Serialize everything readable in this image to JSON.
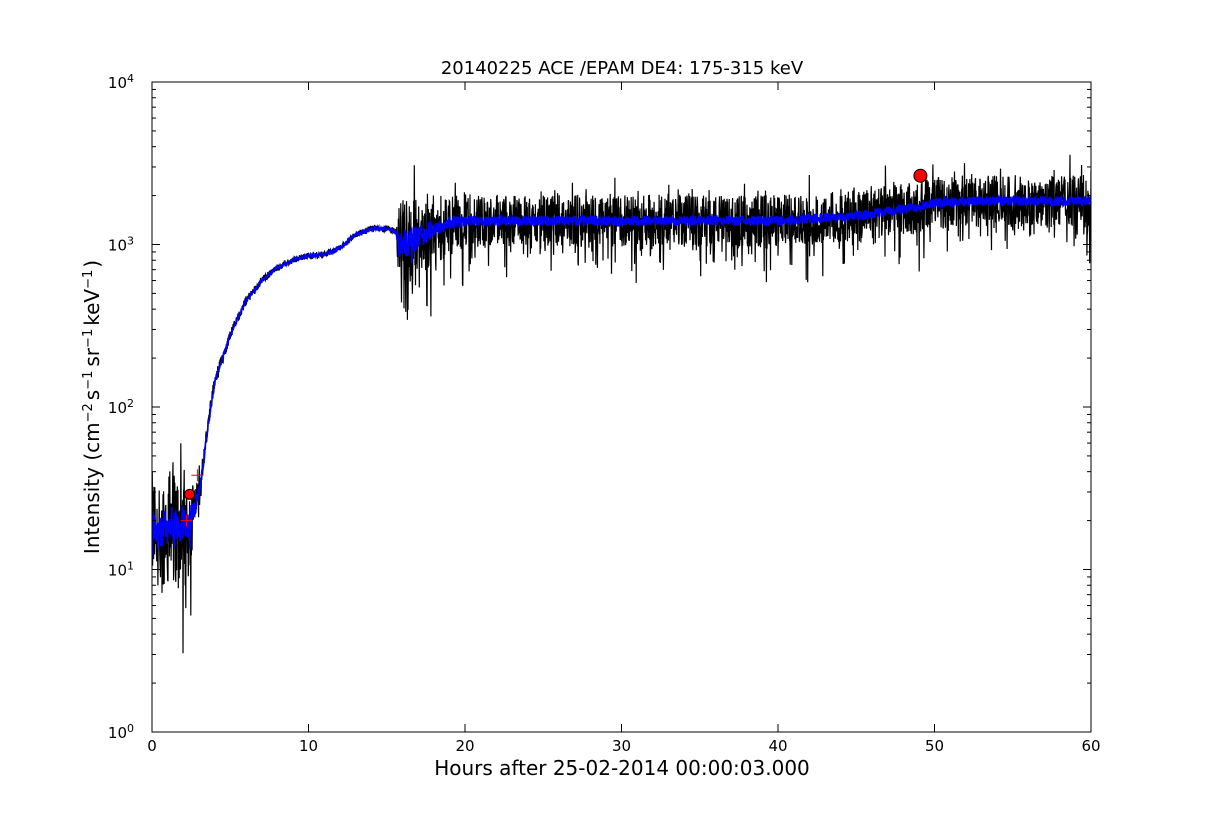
{
  "chart_data": {
    "type": "line",
    "title": "20140225 ACE /EPAM DE4: 175-315 keV",
    "xlabel": "Hours after 25-02-2014 00:00:03.000",
    "ylabel": {
      "prefix": "Intensity (cm",
      "sup1": "−2",
      "mid1": "s",
      "sup2": "−1",
      "mid2": "sr",
      "sup3": "−1",
      "mid3": "keV",
      "sup4": "−1",
      "suffix": ")"
    },
    "xlim": [
      0,
      60
    ],
    "ylim": [
      1,
      10000
    ],
    "yscale": "log",
    "grid": false,
    "legend": "none",
    "x_ticks": [
      0,
      10,
      20,
      30,
      40,
      50,
      60
    ],
    "x_tick_labels": [
      "0",
      "10",
      "20",
      "30",
      "40",
      "50",
      "60"
    ],
    "y_ticks": [
      1,
      10,
      100,
      1000,
      10000
    ],
    "y_tick_labels": [
      {
        "base": "10",
        "exp": "0"
      },
      {
        "base": "10",
        "exp": "1"
      },
      {
        "base": "10",
        "exp": "2"
      },
      {
        "base": "10",
        "exp": "3"
      },
      {
        "base": "10",
        "exp": "4"
      }
    ],
    "colors": {
      "raw": "#000000",
      "smoothed": "#0000ff",
      "marker": "#ff0000"
    },
    "series": [
      {
        "role": "raw",
        "color": "#000000",
        "x": [
          0,
          0.5,
          1,
          1.5,
          2,
          2.4,
          2.8,
          3.2,
          3.6,
          4,
          4.5,
          5,
          6,
          7,
          8,
          9,
          10,
          11,
          12,
          13,
          14,
          15,
          15.6,
          15.8,
          16,
          17,
          18,
          19,
          20,
          22,
          25,
          30,
          35,
          40,
          45,
          48,
          50,
          52,
          55,
          58,
          60
        ],
        "y": [
          18,
          17,
          19,
          18,
          19,
          20,
          25,
          40,
          80,
          140,
          200,
          280,
          450,
          600,
          720,
          800,
          850,
          870,
          950,
          1150,
          1250,
          1250,
          1200,
          900,
          1000,
          1100,
          1250,
          1350,
          1400,
          1400,
          1400,
          1400,
          1400,
          1400,
          1500,
          1650,
          1800,
          1850,
          1850,
          1850,
          1850
        ],
        "noise": [
          0.35,
          0.35,
          0.35,
          0.35,
          0.35,
          0.3,
          0.12,
          0.08,
          0.06,
          0.05,
          0.04,
          0.03,
          0.03,
          0.025,
          0.02,
          0.02,
          0.02,
          0.02,
          0.02,
          0.02,
          0.02,
          0.02,
          0.02,
          0.3,
          0.28,
          0.25,
          0.22,
          0.2,
          0.18,
          0.16,
          0.16,
          0.16,
          0.16,
          0.16,
          0.16,
          0.16,
          0.16,
          0.16,
          0.16,
          0.16,
          0.16
        ]
      },
      {
        "role": "smoothed",
        "color": "#0000ff",
        "x": [
          0,
          0.5,
          1,
          1.5,
          2,
          2.4,
          2.8,
          3.2,
          3.6,
          4,
          4.5,
          5,
          6,
          7,
          8,
          9,
          10,
          11,
          12,
          13,
          14,
          15,
          15.6,
          15.8,
          16,
          17,
          18,
          19,
          20,
          22,
          25,
          30,
          35,
          40,
          45,
          48,
          50,
          52,
          55,
          58,
          60
        ],
        "y": [
          18,
          17,
          19,
          18,
          19,
          20,
          25,
          40,
          80,
          140,
          200,
          280,
          450,
          600,
          720,
          800,
          850,
          870,
          950,
          1150,
          1250,
          1250,
          1200,
          900,
          1000,
          1100,
          1250,
          1350,
          1400,
          1400,
          1400,
          1400,
          1400,
          1400,
          1500,
          1650,
          1800,
          1850,
          1850,
          1850,
          1850
        ],
        "noise": [
          0.12,
          0.12,
          0.12,
          0.12,
          0.12,
          0.1,
          0.05,
          0.04,
          0.03,
          0.02,
          0.015,
          0.012,
          0.01,
          0.01,
          0.01,
          0.01,
          0.01,
          0.01,
          0.01,
          0.01,
          0.01,
          0.01,
          0.01,
          0.1,
          0.1,
          0.07,
          0.05,
          0.04,
          0.035,
          0.03,
          0.03,
          0.03,
          0.03,
          0.03,
          0.03,
          0.03,
          0.03,
          0.03,
          0.03,
          0.03,
          0.03
        ]
      }
    ],
    "markers": [
      {
        "x": 2.4,
        "y": 29,
        "color": "#ff0000"
      },
      {
        "x": 49.1,
        "y": 2650,
        "color": "#ff0000"
      }
    ],
    "crosses": [
      {
        "x": 2.2,
        "y": 20,
        "color": "#ff0000"
      },
      {
        "x": 2.9,
        "y": 38,
        "color": "#ff0000"
      }
    ]
  }
}
